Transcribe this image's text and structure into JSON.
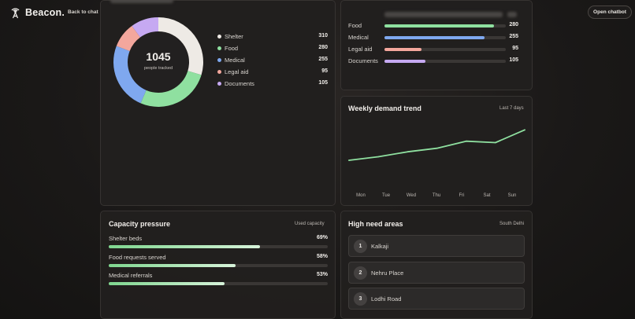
{
  "header": {
    "brand": "Beacon.",
    "back_link": "Back to chat",
    "open_button": "Open chatbot"
  },
  "donut": {
    "total": "1045",
    "total_label": "people tracked",
    "segments": [
      {
        "label": "Shelter",
        "value": 310,
        "color": "#eeeae5"
      },
      {
        "label": "Food",
        "value": 280,
        "color": "#8fe0a0"
      },
      {
        "label": "Medical",
        "value": 255,
        "color": "#7fa8ef"
      },
      {
        "label": "Legal aid",
        "value": 95,
        "color": "#f3a79d"
      },
      {
        "label": "Documents",
        "value": 105,
        "color": "#c6a9f2"
      }
    ]
  },
  "category_bars": {
    "max": 310,
    "items": [
      {
        "label": "Food",
        "value": "280",
        "color": "#8fe0a0"
      },
      {
        "label": "Medical",
        "value": "255",
        "color": "#7fa8ef"
      },
      {
        "label": "Legal aid",
        "value": "95",
        "color": "#f3a79d"
      },
      {
        "label": "Documents",
        "value": "105",
        "color": "#c6a9f2"
      }
    ]
  },
  "weekly": {
    "title": "Weekly demand trend",
    "meta": "Last 7 days",
    "chart_data": {
      "type": "line",
      "x": [
        "Mon",
        "Tue",
        "Wed",
        "Thu",
        "Fri",
        "Sat",
        "Sun"
      ],
      "series": [
        {
          "values": [
            40,
            45,
            52,
            57,
            67,
            65,
            83
          ],
          "color": "#8fe0a0"
        }
      ],
      "ylim": [
        0,
        100
      ],
      "grid": false
    }
  },
  "capacity": {
    "title": "Capacity pressure",
    "meta": "Used capacity",
    "items": [
      {
        "label": "Shelter beds",
        "pct": "69%",
        "value": 69
      },
      {
        "label": "Food requests served",
        "pct": "58%",
        "value": 58
      },
      {
        "label": "Medical referrals",
        "pct": "53%",
        "value": 53
      }
    ]
  },
  "areas": {
    "title": "High need areas",
    "meta": "South Delhi",
    "items": [
      {
        "num": "1",
        "name": "Kalkaji"
      },
      {
        "num": "2",
        "name": "Nehru Place"
      },
      {
        "num": "3",
        "name": "Lodhi Road"
      }
    ]
  }
}
